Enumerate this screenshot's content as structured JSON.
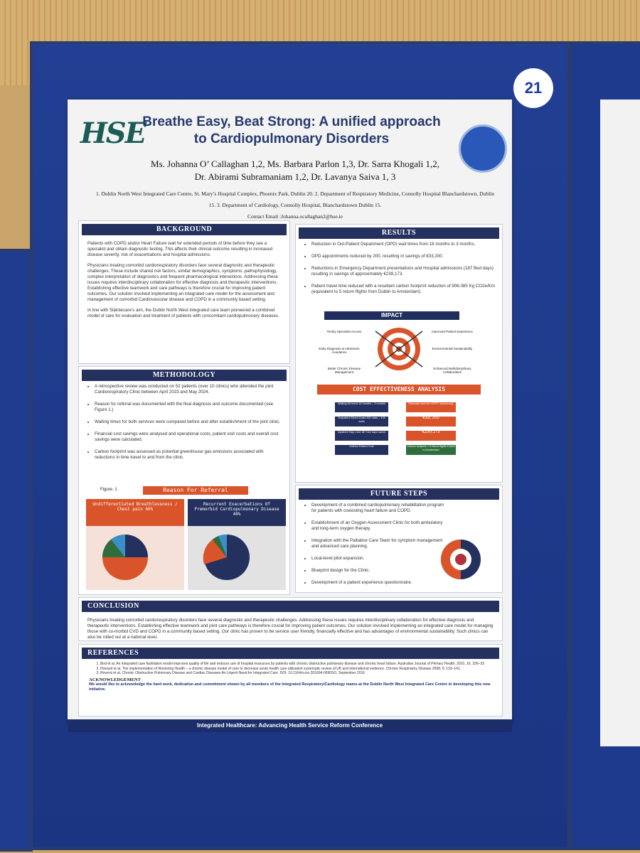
{
  "poster_number": "21",
  "logo_text": "HSE",
  "title": "Breathe Easy, Beat Strong: A unified approach to Cardiopulmonary Disorders",
  "authors_line1": "Ms. Johanna O’ Callaghan 1,2, Ms. Barbara Parlon 1,3, Dr. Sarra Khogali 1,2,",
  "authors_line2": "Dr. Abirami Subramaniam 1,2, Dr. Lavanya Saiva 1, 3",
  "affiliations": "1. Dublin North West Integrated Care Centre, St. Mary’s Hospital Complex, Phoenix Park, Dublin 20.  2. Department of Respiratory Medicine, Connolly Hospital Blanchardstown, Dublin 15. 3. Department of Cardiology, Connolly Hospital, Blanchardstown Dublin 15.",
  "contact": "Contact Email :Johanna.ocallaghan2@hse.ie",
  "background": {
    "heading": "BACKGROUND",
    "p1": "Patients with COPD and/or Heart Failure wait for extended periods of time before they see a specialist and obtain diagnostic testing. This affects their clinical outcome resulting in increased disease severity, risk of exacerbations and hospital admissions.",
    "p2": "Physicians treating comorbid cardiorespiratory disorders face several diagnostic and therapeutic challenges. These include shared risk factors, similar demographics, symptoms, pathophysiology, complex interpretation of diagnostics and frequent pharmacological interactions. Addressing these issues requires interdisciplinary collaboration for effective diagnosis and therapeutic interventions. Establishing effective teamwork and care pathways is therefore crucial for improving patient outcomes. Our solution involved implementing an integrated care model for the assessment and management of comorbid Cardiovascular disease and COPD in a community based setting.",
    "p3": "In line with Sláintecare’s aim, the Dublin North West integrated care team pioneered a combined model of care for evaluation and treatment of patients with concomitant cardiopulmonary diseases."
  },
  "methodology": {
    "heading": "METHODOLOGY",
    "items": [
      "A retrospective review was conducted on 52 patients (over 10 clinics) who attended the joint Cardiorespiratory Clinic between April 2023 and May 2024.",
      "Reason for referral was documented with the final diagnosis and outcome documented (see Figure 1.)",
      "Waiting times for both services were compared before and after establishment of the joint clinic.",
      "Financial cost savings were analysed and operational costs, patient visit costs and overall cost savings were calculated.",
      "Carbon footprint was assessed as potential greenhouse gas emissions associated with reductions in time travel to and from the clinic."
    ],
    "figure_label": "Figure. 1",
    "figure_title": "Reason For Referral",
    "chart1_title": "Undifferentiated Breathlessness / Chest pain 60%",
    "chart2_title": "Recurrent Exacerbations Of Premorbid Cardiopulmonary Disease 40%"
  },
  "results": {
    "heading": "RESULTS",
    "items": [
      "Reduction in Out-Patient Department (OPD) wait times from 18 months to 3 months.",
      "OPD appointments reduced by 200, resulting in savings of €33,200.",
      "Reductions in Emergency Department presentations and Hospital admissions (187 Bed days) resulting in savings of approximately €239,173.",
      "Patient travel time reduced with a resultant carbon footprint reduction of 906.085 Kg CO2e/Km (equivalent to 5 return flights from Dublin to Amsterdam)."
    ],
    "impact_title": "IMPACT",
    "impact_labels": [
      "Timely Specialist Access",
      "Improved Patient Experience",
      "Early Diagnosis & Admission Avoidance",
      "Environmental Sustainability",
      "Better Chronic Disease Management",
      "Enhanced Multidisciplinary Collaboration"
    ],
    "cea_title": "COST EFFECTIVENESS ANALYSIS",
    "cea_left": [
      "Waiting list times 18 months – 3 months",
      "Outpatient Direct Costs 300 visits – 100 visits",
      "Inpatient Stay Cost 187 bed days saved",
      "Indirect Patient Cost"
    ],
    "cea_right": [
      "Eliminate need for WTPF outsourcing",
      "€33, 200",
      "€239,173",
      "Carbon footprint = 5 return flights Dublin to Amsterdam"
    ]
  },
  "future": {
    "heading": "FUTURE STEPS",
    "items": [
      "Development of a combined cardiopulmonary rehabilitation program for patients with coexisting heart failure and COPD.",
      "Establishment of an Oxygen Assessment Clinic for both ambulatory and long-term oxygen therapy.",
      "Integration with the Palliative Care Team for symptom management and advanced care planning.",
      "Local-level pilot expansion.",
      "Blueprint design for the Clinic.",
      "Development of a patient experience questionnaire."
    ]
  },
  "conclusion": {
    "heading": "CONCLUSION",
    "text": "Physicians treating comorbid cardiorespiratory disorders face several diagnostic and therapeutic challenges. Addressing these issues requires interdisciplinary collaboration for effective diagnosis and therapeutic interventions. Establishing effective teamwork and joint care pathways is therefore crucial for improving patient outcomes. Our solution involved implementing an integrated care model for managing those with co-morbid CVD and COPD in a community based setting. Our clinic has proven to be service user friendly, financially effective and has advantages of environmental sustainability. Such clinics can also be rolled out at a national level."
  },
  "references": {
    "heading": "REFERENCES",
    "items": [
      "Bird et al, An integrated care facilitation model improves quality of life and reduces use of hospital resources by patients with chronic obstructive pulmonary disease and chronic heart failure. Australian Journal of Primary Health, 2010, 16, 326–33",
      "Howard et al, The implementation of Restoring Health – a chronic disease model of care to decrease acute health care utilization systematic review of UK and international evidence. Chronic Respiratory Disease 2008; 5: 133–141.",
      "Roversi et al, Chronic Obstructive Pulmonary Disease and Cardiac Diseases An Urgent Need for Integrated Care. DOI: 10.1164/rccm.201604-0690SO, September 2016"
    ],
    "ack_heading": "ACKNOWLEDGEMENT",
    "ack_text": "We would like to acknowledge the hard work, dedication and commitment shown by all members of the Integrated Respiratory/Cardiology teams at the Dublin North West Integrated Care Centre in developing this new initiative."
  },
  "banner": "Integrated Healthcare: Advancing Health Service Reform Conference"
}
